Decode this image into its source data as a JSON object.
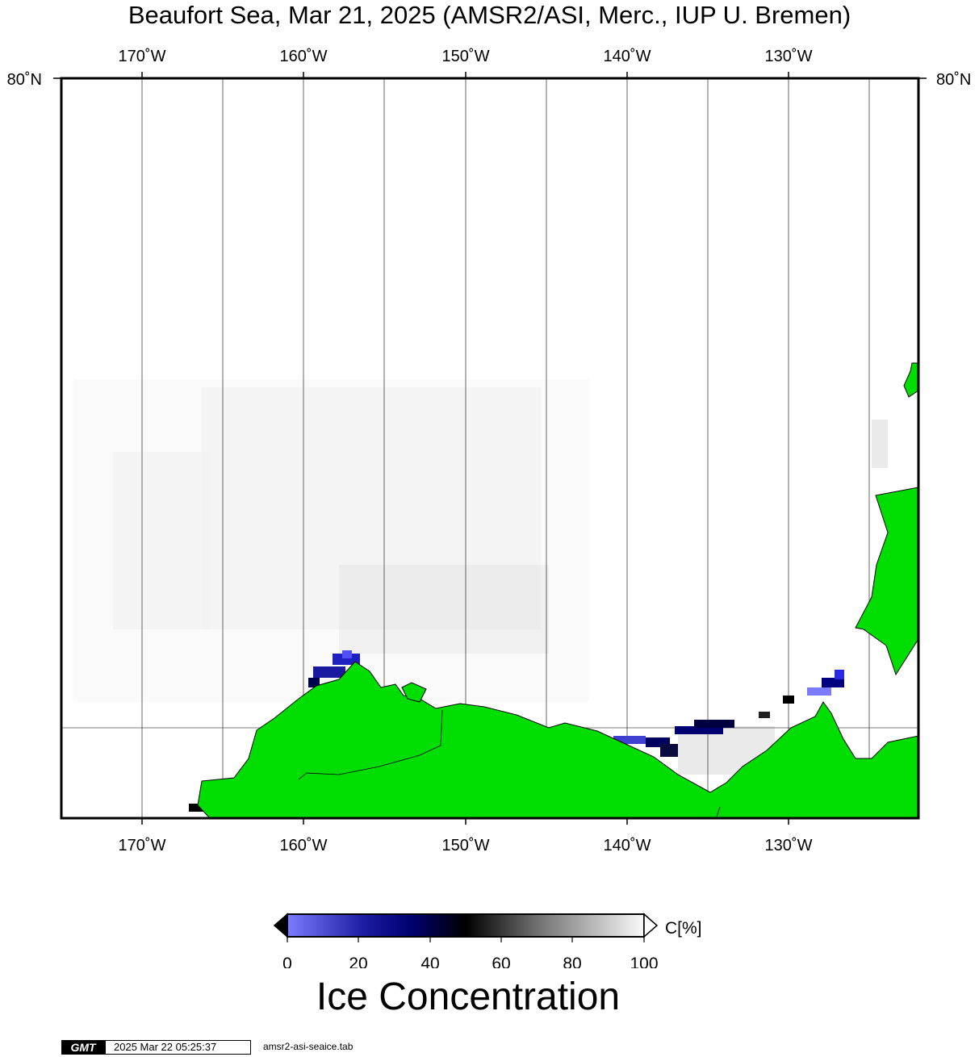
{
  "title": "Beaufort Sea, Mar 21, 2025 (AMSR2/ASI, Merc., IUP U. Bremen)",
  "map": {
    "lon_range": [
      -175,
      -122
    ],
    "lat_labels": [
      {
        "text": "80˚N",
        "lat": 80
      }
    ],
    "lon_ticks": [
      {
        "lon": -170,
        "label": "170˚W"
      },
      {
        "lon": -160,
        "label": "160˚W"
      },
      {
        "lon": -150,
        "label": "150˚W"
      },
      {
        "lon": -140,
        "label": "140˚W"
      },
      {
        "lon": -130,
        "label": "130˚W"
      }
    ],
    "minor_meridians": [
      -165,
      -155,
      -145,
      -135,
      -125
    ],
    "colors": {
      "land": "#00dd00",
      "water": "#ffffff",
      "ice_low": "#7b7bff",
      "ice_mid": "#000080",
      "ice_high": "#f8f8f8"
    }
  },
  "colorbar": {
    "ticks": [
      "0",
      "20",
      "40",
      "60",
      "80",
      "100"
    ],
    "unit": "C[%]",
    "label": "Ice Concentration",
    "range": [
      0,
      100
    ]
  },
  "footer": {
    "logo": "GMT",
    "timestamp": "2025 Mar 22 05:25:37",
    "file": "amsr2-asi-seaice.tab"
  }
}
